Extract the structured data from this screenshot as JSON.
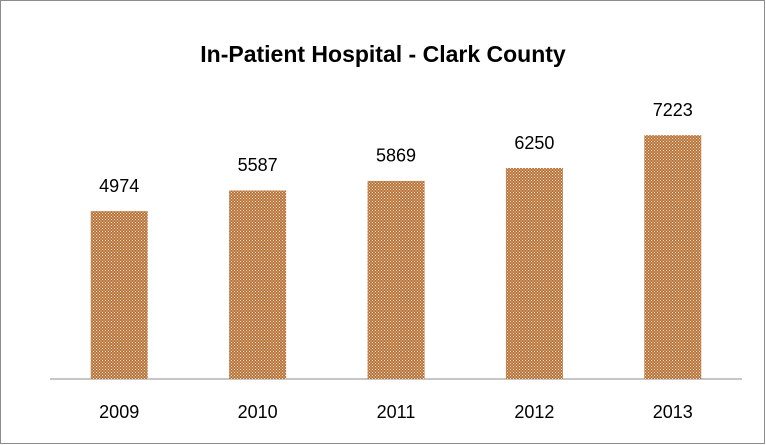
{
  "chart_data": {
    "type": "bar",
    "title": "In-Patient Hospital - Clark County",
    "categories": [
      "2009",
      "2010",
      "2011",
      "2012",
      "2013"
    ],
    "values": [
      4974,
      5587,
      5869,
      6250,
      7223
    ],
    "color": "#b8733a",
    "ylim": [
      0,
      8000
    ]
  }
}
